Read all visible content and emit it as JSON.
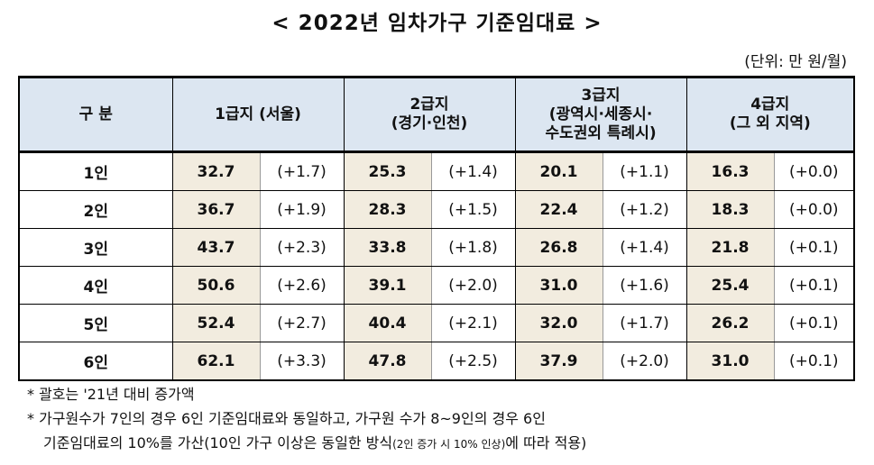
{
  "title": "< 2022년 임차가구 기준임대료 >",
  "unit": "(단위: 만 원/월)",
  "table": {
    "headers": [
      {
        "line1": "구 분",
        "line2": ""
      },
      {
        "line1": "1급지 (서울)",
        "line2": ""
      },
      {
        "line1": "2급지",
        "line2": "(경기·인천)"
      },
      {
        "line1": "3급지",
        "line2": "(광역시·세종시·",
        "line3": "수도권외 특례시)"
      },
      {
        "line1": "4급지",
        "line2": "(그 외 지역)"
      }
    ],
    "rows": [
      {
        "label": "1인",
        "cells": [
          "32.7",
          "(+1.7)",
          "25.3",
          "(+1.4)",
          "20.1",
          "(+1.1)",
          "16.3",
          "(+0.0)"
        ]
      },
      {
        "label": "2인",
        "cells": [
          "36.7",
          "(+1.9)",
          "28.3",
          "(+1.5)",
          "22.4",
          "(+1.2)",
          "18.3",
          "(+0.0)"
        ]
      },
      {
        "label": "3인",
        "cells": [
          "43.7",
          "(+2.3)",
          "33.8",
          "(+1.8)",
          "26.8",
          "(+1.4)",
          "21.8",
          "(+0.1)"
        ]
      },
      {
        "label": "4인",
        "cells": [
          "50.6",
          "(+2.6)",
          "39.1",
          "(+2.0)",
          "31.0",
          "(+1.6)",
          "25.4",
          "(+0.1)"
        ]
      },
      {
        "label": "5인",
        "cells": [
          "52.4",
          "(+2.7)",
          "40.4",
          "(+2.1)",
          "32.0",
          "(+1.7)",
          "26.2",
          "(+0.1)"
        ]
      },
      {
        "label": "6인",
        "cells": [
          "62.1",
          "(+3.3)",
          "47.8",
          "(+2.5)",
          "37.9",
          "(+2.0)",
          "31.0",
          "(+0.1)"
        ]
      }
    ]
  },
  "notes": {
    "note1": "* 괄호는 '21년 대비 증가액",
    "note2": "* 가구원수가 7인의 경우 6인 기준임대료와 동일하고, 가구원 수가 8~9인의 경우 6인",
    "note3_main": "기준임대료의 10%를 가산(10인 가구 이상은 동일한 방식",
    "note3_small": "(2인 증가 시 10% 인상)",
    "note3_end": "에 따라 적용)"
  },
  "colors": {
    "header_bg": "#dce6f1",
    "value_bg": "#f2ecdf"
  }
}
